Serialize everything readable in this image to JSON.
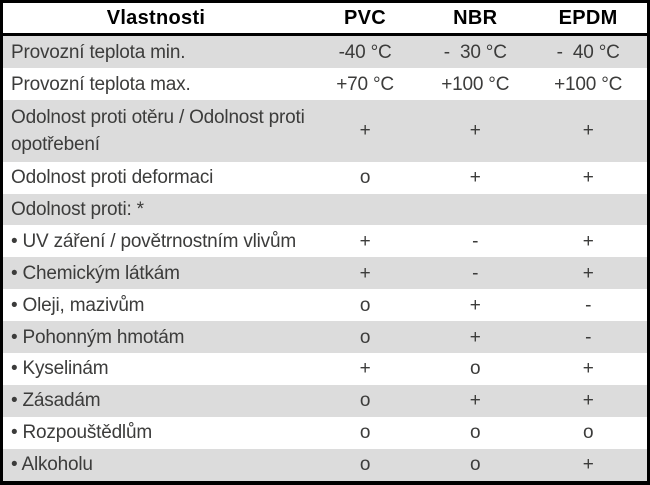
{
  "colors": {
    "stripe_row": "#dcdcdc",
    "border": "#000000",
    "body_text": "#3c3c3b",
    "header_text": "#000000"
  },
  "table": {
    "headers": {
      "property": "Vlastnosti",
      "pvc": "PVC",
      "nbr": "NBR",
      "epdm": "EPDM"
    },
    "rows": [
      {
        "label": "Provozní teplota min.",
        "pvc": "-40 °C",
        "nbr": "-  30 °C",
        "epdm": "-  40 °C"
      },
      {
        "label": "Provozní teplota max.",
        "pvc": "+70 °C",
        "nbr": "+100 °C",
        "epdm": "+100 °C"
      },
      {
        "label": "Odolnost proti otěru / Odolnost proti opotřebení",
        "pvc": "+",
        "nbr": "+",
        "epdm": "+"
      },
      {
        "label": "Odolnost proti deformaci",
        "pvc": "o",
        "nbr": "+",
        "epdm": "+"
      },
      {
        "label": "Odolnost proti: *",
        "pvc": "",
        "nbr": "",
        "epdm": ""
      },
      {
        "label": "• UV záření / povětrnostním vlivům",
        "pvc": "+",
        "nbr": "-",
        "epdm": "+"
      },
      {
        "label": "• Chemickým látkám",
        "pvc": "+",
        "nbr": "-",
        "epdm": "+"
      },
      {
        "label": "• Oleji, mazivům",
        "pvc": "o",
        "nbr": "+",
        "epdm": "-"
      },
      {
        "label": "• Pohonným hmotám",
        "pvc": "o",
        "nbr": "+",
        "epdm": "-"
      },
      {
        "label": "• Kyselinám",
        "pvc": "+",
        "nbr": "o",
        "epdm": "+"
      },
      {
        "label": "• Zásadám",
        "pvc": "o",
        "nbr": "+",
        "epdm": "+"
      },
      {
        "label": "• Rozpouštědlům",
        "pvc": "o",
        "nbr": "o",
        "epdm": "o"
      },
      {
        "label": "• Alkoholu",
        "pvc": "o",
        "nbr": "o",
        "epdm": "+"
      }
    ]
  }
}
